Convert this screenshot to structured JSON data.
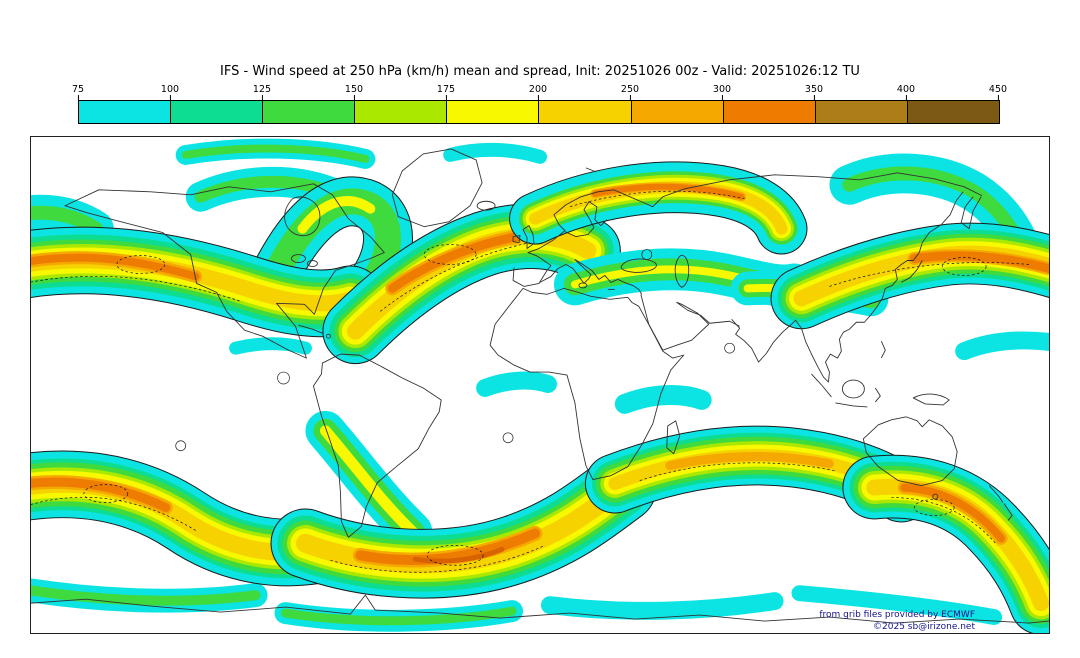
{
  "title": "IFS - Wind speed at 250 hPa (km/h) mean and spread, Init: 20251026 00z - Valid: 20251026:12 TU",
  "colorbar": {
    "unit": "km/h",
    "tick_labels": [
      "75",
      "100",
      "125",
      "150",
      "175",
      "200",
      "250",
      "300",
      "350",
      "400",
      "450"
    ],
    "cell_colors": [
      "#0ce4e4",
      "#0cdd92",
      "#3eda3e",
      "#aae800",
      "#f8f800",
      "#f6d200",
      "#f5a900",
      "#ee7c00",
      "#ad7d18",
      "#7c5a14"
    ]
  },
  "map": {
    "attribution_line1": "from grib files provided by ECMWF",
    "attribution_line2": "©2025 sb@irizone.net"
  },
  "chart_data": {
    "type": "heatmap",
    "title": "IFS - Wind speed at 250 hPa (km/h) mean and spread, Init: 20251026 00z - Valid: 20251026:12 TU",
    "variable": "Wind speed at 250 hPa",
    "unit": "km/h",
    "statistic": "mean and spread",
    "init": "20251026 00z",
    "valid": "20251026:12 TU",
    "scale_ticks": [
      75,
      100,
      125,
      150,
      175,
      200,
      250,
      300,
      350,
      400,
      450
    ],
    "scale_colors": [
      "#0ce4e4",
      "#0cdd92",
      "#3eda3e",
      "#aae800",
      "#f8f800",
      "#f6d200",
      "#f5a900",
      "#ee7c00",
      "#ad7d18",
      "#7c5a14"
    ],
    "legend_position": "top",
    "projection": "equirectangular world map",
    "attribution": [
      "from grib files provided by ECMWF",
      "©2025 sb@irizone.net"
    ]
  }
}
